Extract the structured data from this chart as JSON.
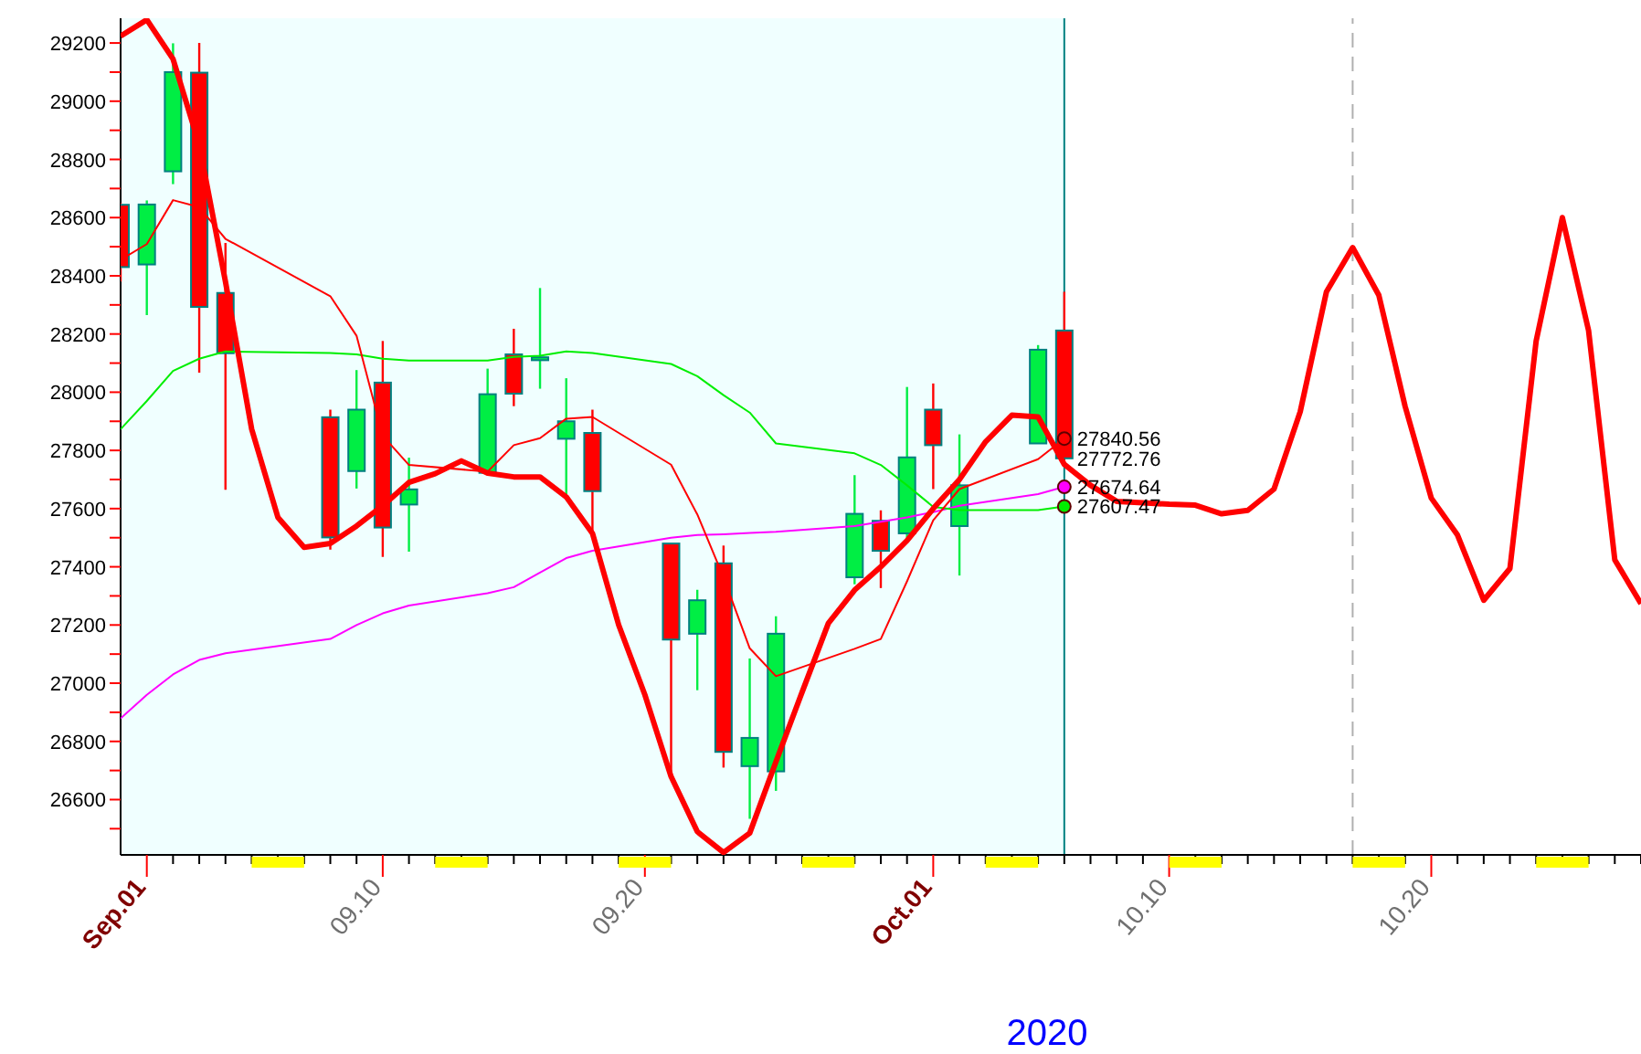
{
  "chart_data": {
    "type": "candlestick",
    "xlabel": "2020",
    "x": [
      "2020-08-31",
      "2020-09-01",
      "2020-09-02",
      "2020-09-03",
      "2020-09-04",
      "2020-09-08",
      "2020-09-09",
      "2020-09-10",
      "2020-09-11",
      "2020-09-14",
      "2020-09-15",
      "2020-09-16",
      "2020-09-17",
      "2020-09-18",
      "2020-09-21",
      "2020-09-22",
      "2020-09-23",
      "2020-09-24",
      "2020-09-25",
      "2020-09-28",
      "2020-09-29",
      "2020-09-30",
      "2020-10-01",
      "2020-10-02",
      "2020-10-05",
      "2020-10-06"
    ],
    "ohlc": [
      [
        28644,
        28650,
        28380,
        28430
      ],
      [
        28439,
        28659,
        28265,
        28645
      ],
      [
        28759,
        29199,
        28715,
        29100
      ],
      [
        29098,
        29200,
        28067,
        28293
      ],
      [
        28341,
        28513,
        27665,
        28134
      ],
      [
        27914,
        27940,
        27459,
        27501
      ],
      [
        27729,
        28076,
        27669,
        27940
      ],
      [
        28033,
        28176,
        27434,
        27535
      ],
      [
        27614,
        27775,
        27452,
        27666
      ],
      [
        27723,
        28081,
        27723,
        27993
      ],
      [
        28130,
        28218,
        27952,
        27995
      ],
      [
        28110,
        28358,
        28012,
        28120
      ],
      [
        27840,
        28048,
        27649,
        27900
      ],
      [
        27860,
        27940,
        27509,
        27660
      ],
      [
        27480,
        27480,
        26680,
        27150
      ],
      [
        27170,
        27321,
        26976,
        27285
      ],
      [
        27412,
        27473,
        26710,
        26764
      ],
      [
        26715,
        27085,
        26534,
        26812
      ],
      [
        26697,
        27230,
        26630,
        27170
      ],
      [
        27364,
        27715,
        27340,
        27582
      ],
      [
        27558,
        27594,
        27327,
        27455
      ],
      [
        27515,
        28018,
        27500,
        27776
      ],
      [
        27940,
        28030,
        27667,
        27818
      ],
      [
        27540,
        27855,
        27370,
        27680
      ],
      [
        27824,
        28162,
        27824,
        28146
      ],
      [
        28212,
        28345,
        27760,
        27772.76
      ]
    ],
    "colors": [
      "#ff0000",
      "#00ee44",
      "#00ee44",
      "#ff0000",
      "#ff0000",
      "#ff0000",
      "#00ee44",
      "#ff0000",
      "#00ee44",
      "#00ee44",
      "#ff0000",
      "#00ee44",
      "#00ee44",
      "#ff0000",
      "#ff0000",
      "#00ee44",
      "#ff0000",
      "#00ee44",
      "#00ee44",
      "#00ee44",
      "#ff0000",
      "#00ee44",
      "#ff0000",
      "#00ee44",
      "#00ee44",
      "#ff0000"
    ],
    "series": [
      {
        "type": "line",
        "color": "#ff0000",
        "x": [
          "2020-08-31",
          "2020-09-01",
          "2020-09-02",
          "2020-09-03",
          "2020-09-04",
          "2020-09-05",
          "2020-09-06",
          "2020-09-07",
          "2020-09-08",
          "2020-09-09",
          "2020-09-10",
          "2020-09-11",
          "2020-09-12",
          "2020-09-13",
          "2020-09-14",
          "2020-09-15",
          "2020-09-16",
          "2020-09-17",
          "2020-09-18",
          "2020-09-19",
          "2020-09-20",
          "2020-09-21",
          "2020-09-22",
          "2020-09-23",
          "2020-09-24",
          "2020-09-25",
          "2020-09-26",
          "2020-09-27",
          "2020-09-28",
          "2020-09-29",
          "2020-09-30",
          "2020-10-01",
          "2020-10-02",
          "2020-10-03",
          "2020-10-04",
          "2020-10-05",
          "2020-10-06",
          "2020-10-07",
          "2020-10-08",
          "2020-10-09",
          "2020-10-10",
          "2020-10-11",
          "2020-10-12",
          "2020-10-13",
          "2020-10-14",
          "2020-10-15",
          "2020-10-16",
          "2020-10-17",
          "2020-10-18",
          "2020-10-19",
          "2020-10-20",
          "2020-10-21",
          "2020-10-22",
          "2020-10-23",
          "2020-10-24",
          "2020-10-25",
          "2020-10-26",
          "2020-10-27",
          "2020-10-28"
        ],
        "values": [
          29224,
          29280,
          29145,
          28850,
          28380,
          27873,
          27570,
          27467,
          27480,
          27540,
          27610,
          27690,
          27720,
          27764,
          27722,
          27709,
          27709,
          27640,
          27515,
          27200,
          26960,
          26679,
          26490,
          26418,
          26485,
          26730,
          26970,
          27206,
          27320,
          27400,
          27490,
          27600,
          27700,
          27830,
          27921,
          27915,
          27752,
          27680,
          27625,
          27620,
          27615,
          27612,
          27582,
          27594,
          27667,
          27933,
          28345,
          28497,
          28333,
          27952,
          27636,
          27509,
          27285,
          27394,
          28176,
          28600,
          28212,
          27424,
          27273
        ]
      },
      {
        "type": "line",
        "color": "#ff0000",
        "x": [
          "2020-08-31",
          "2020-09-01",
          "2020-09-02",
          "2020-09-03",
          "2020-09-04",
          "2020-09-08",
          "2020-09-09",
          "2020-09-10",
          "2020-09-11",
          "2020-09-14",
          "2020-09-15",
          "2020-09-16",
          "2020-09-17",
          "2020-09-18",
          "2020-09-21",
          "2020-09-22",
          "2020-09-23",
          "2020-09-24",
          "2020-09-25",
          "2020-09-28",
          "2020-09-29",
          "2020-09-30",
          "2020-10-01",
          "2020-10-02",
          "2020-10-05",
          "2020-10-06"
        ],
        "values": [
          28455,
          28509,
          28660,
          28636,
          28527,
          28330,
          28194,
          27850,
          27750,
          27727,
          27818,
          27842,
          27909,
          27915,
          27751,
          27580,
          27364,
          27120,
          27024,
          27118,
          27152,
          27350,
          27560,
          27667,
          27770,
          27840.56
        ]
      },
      {
        "type": "line",
        "color": "#00ee00",
        "x": [
          "2020-08-31",
          "2020-09-01",
          "2020-09-02",
          "2020-09-03",
          "2020-09-04",
          "2020-09-08",
          "2020-09-09",
          "2020-09-10",
          "2020-09-11",
          "2020-09-14",
          "2020-09-15",
          "2020-09-16",
          "2020-09-17",
          "2020-09-18",
          "2020-09-21",
          "2020-09-22",
          "2020-09-23",
          "2020-09-24",
          "2020-09-25",
          "2020-09-28",
          "2020-09-29",
          "2020-09-30",
          "2020-10-01",
          "2020-10-02",
          "2020-10-05",
          "2020-10-06"
        ],
        "values": [
          27873,
          27970,
          28073,
          28115,
          28140,
          28135,
          28130,
          28115,
          28109,
          28109,
          28121,
          28125,
          28140,
          28135,
          28097,
          28055,
          27990,
          27930,
          27824,
          27790,
          27750,
          27680,
          27606,
          27595,
          27595,
          27607.47
        ]
      },
      {
        "type": "line",
        "color": "#ff00ff",
        "x": [
          "2020-08-31",
          "2020-09-01",
          "2020-09-02",
          "2020-09-03",
          "2020-09-04",
          "2020-09-08",
          "2020-09-09",
          "2020-09-10",
          "2020-09-11",
          "2020-09-14",
          "2020-09-15",
          "2020-09-16",
          "2020-09-17",
          "2020-09-18",
          "2020-09-21",
          "2020-09-22",
          "2020-09-23",
          "2020-09-24",
          "2020-09-25",
          "2020-09-28",
          "2020-09-29",
          "2020-09-30",
          "2020-10-01",
          "2020-10-02",
          "2020-10-05",
          "2020-10-06"
        ],
        "values": [
          26879,
          26960,
          27030,
          27080,
          27103,
          27152,
          27200,
          27240,
          27267,
          27309,
          27330,
          27380,
          27430,
          27455,
          27500,
          27509,
          27512,
          27516,
          27520,
          27540,
          27555,
          27570,
          27588,
          27610,
          27650,
          27674.64
        ]
      }
    ],
    "xlim": [
      "2020-08-31",
      "2020-10-28"
    ],
    "xticks": [
      {
        "value": "2020-09-01",
        "label": "Sep.01"
      },
      {
        "value": "2020-09-02",
        "label": null
      },
      {
        "value": "2020-09-03",
        "label": null
      },
      {
        "value": "2020-09-04",
        "label": null
      },
      {
        "value": "2020-09-05",
        "label": null
      },
      {
        "value": "2020-09-06",
        "label": null
      },
      {
        "value": "2020-09-07",
        "label": null
      },
      {
        "value": "2020-09-08",
        "label": null
      },
      {
        "value": "2020-09-09",
        "label": null
      },
      {
        "value": "2020-09-10",
        "label": "09.10"
      },
      {
        "value": "2020-09-11",
        "label": null
      },
      {
        "value": "2020-09-12",
        "label": null
      },
      {
        "value": "2020-09-13",
        "label": null
      },
      {
        "value": "2020-09-14",
        "label": null
      },
      {
        "value": "2020-09-15",
        "label": null
      },
      {
        "value": "2020-09-16",
        "label": null
      },
      {
        "value": "2020-09-17",
        "label": null
      },
      {
        "value": "2020-09-18",
        "label": null
      },
      {
        "value": "2020-09-19",
        "label": null
      },
      {
        "value": "2020-09-20",
        "label": "09.20"
      },
      {
        "value": "2020-09-21",
        "label": null
      },
      {
        "value": "2020-09-22",
        "label": null
      },
      {
        "value": "2020-09-23",
        "label": null
      },
      {
        "value": "2020-09-24",
        "label": null
      },
      {
        "value": "2020-09-25",
        "label": null
      },
      {
        "value": "2020-09-26",
        "label": null
      },
      {
        "value": "2020-09-27",
        "label": null
      },
      {
        "value": "2020-09-28",
        "label": null
      },
      {
        "value": "2020-09-29",
        "label": null
      },
      {
        "value": "2020-09-30",
        "label": null
      },
      {
        "value": "2020-10-01",
        "label": "Oct.01"
      },
      {
        "value": "2020-10-02",
        "label": null
      },
      {
        "value": "2020-10-03",
        "label": null
      },
      {
        "value": "2020-10-04",
        "label": null
      },
      {
        "value": "2020-10-05",
        "label": null
      },
      {
        "value": "2020-10-06",
        "label": null
      },
      {
        "value": "2020-10-07",
        "label": null
      },
      {
        "value": "2020-10-08",
        "label": null
      },
      {
        "value": "2020-10-09",
        "label": null
      },
      {
        "value": "2020-10-10",
        "label": "10.10"
      },
      {
        "value": "2020-10-11",
        "label": null
      },
      {
        "value": "2020-10-12",
        "label": null
      },
      {
        "value": "2020-10-13",
        "label": null
      },
      {
        "value": "2020-10-14",
        "label": null
      },
      {
        "value": "2020-10-15",
        "label": null
      },
      {
        "value": "2020-10-16",
        "label": null
      },
      {
        "value": "2020-10-17",
        "label": null
      },
      {
        "value": "2020-10-18",
        "label": null
      },
      {
        "value": "2020-10-19",
        "label": null
      },
      {
        "value": "2020-10-20",
        "label": "10.20"
      },
      {
        "value": "2020-10-21",
        "label": null
      },
      {
        "value": "2020-10-22",
        "label": null
      },
      {
        "value": "2020-10-23",
        "label": null
      },
      {
        "value": "2020-10-24",
        "label": null
      },
      {
        "value": "2020-10-25",
        "label": null
      },
      {
        "value": "2020-10-26",
        "label": null
      },
      {
        "value": "2020-10-27",
        "label": null
      },
      {
        "value": "2020-10-28",
        "label": null
      }
    ],
    "ylim": [
      26410,
      29285
    ],
    "yticks": [
      {
        "value": 26500,
        "label": null
      },
      26600,
      {
        "value": 26700,
        "label": null
      },
      26800,
      {
        "value": 26900,
        "label": null
      },
      27000,
      {
        "value": 27100,
        "label": null
      },
      27200,
      {
        "value": 27300,
        "label": null
      },
      27400,
      {
        "value": 27500,
        "label": null
      },
      27600,
      {
        "value": 27700,
        "label": null
      },
      27800,
      {
        "value": 27900,
        "label": null
      },
      28000,
      {
        "value": 28100,
        "label": null
      },
      28200,
      {
        "value": 28300,
        "label": null
      },
      28400,
      {
        "value": 28500,
        "label": null
      },
      28600,
      {
        "value": 28700,
        "label": null
      },
      28800,
      {
        "value": 28900,
        "label": null
      },
      29000,
      {
        "value": 29100,
        "label": null
      },
      29200
    ],
    "ref_lines": [
      {
        "axis": "x",
        "value": "2020-10-06",
        "color": "#008080",
        "line_style": "solid"
      },
      {
        "axis": "x",
        "value": "2020-10-17",
        "color": "#b0b0b0",
        "line_style": "dashed"
      }
    ],
    "bands": [
      {
        "axis": "x",
        "from": "2020-08-31",
        "to": "2020-10-06",
        "color": "#f0ffff"
      }
    ],
    "annotations": [
      {
        "text": "27840.56",
        "x": "2020-10-06",
        "y": 27840.56
      },
      {
        "text": "27772.76",
        "x": "2020-10-06",
        "y": 27772.76
      },
      {
        "text": "27674.64",
        "x": "2020-10-06",
        "y": 27674.64
      },
      {
        "text": "27607.47",
        "x": "2020-10-06",
        "y": 27607.47
      }
    ]
  }
}
